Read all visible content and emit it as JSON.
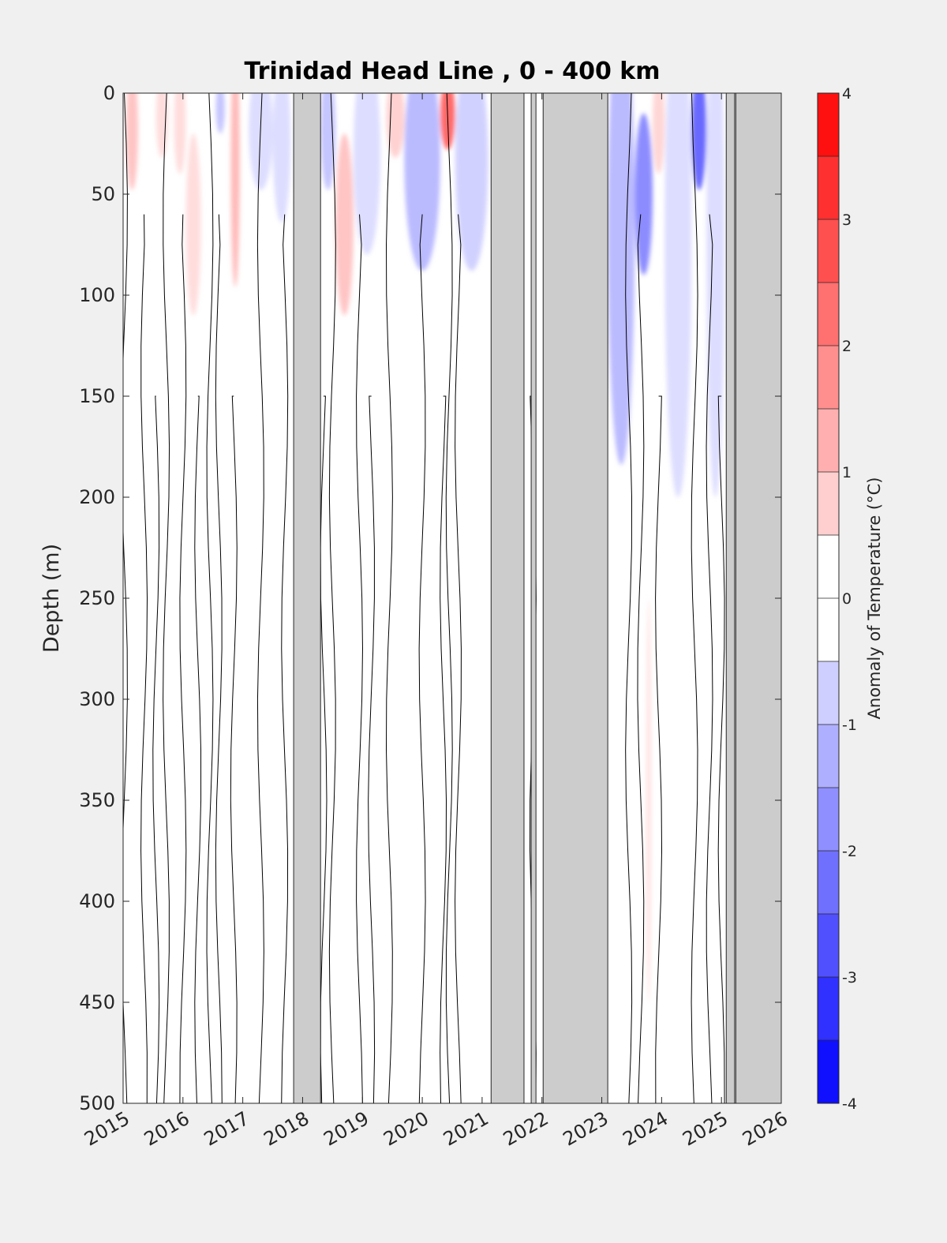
{
  "chart_data": {
    "type": "heatmap",
    "subtype": "filled-contour time-depth section",
    "title": "Trinidad Head Line , 0 - 400 km",
    "xlabel": "",
    "ylabel": "Depth (m)",
    "xlim": [
      2015,
      2026
    ],
    "ylim": [
      0,
      500
    ],
    "y_reversed": true,
    "xticks": [
      2015,
      2016,
      2017,
      2018,
      2019,
      2020,
      2021,
      2022,
      2023,
      2024,
      2025,
      2026
    ],
    "yticks": [
      0,
      50,
      100,
      150,
      200,
      250,
      300,
      350,
      400,
      450,
      500
    ],
    "colorbar": {
      "label": "Anomaly of Temperature (°C)",
      "limits": [
        -4,
        4
      ],
      "step": 0.5,
      "ticks": [
        -4,
        -3,
        -2,
        -1,
        0,
        1,
        2,
        3,
        4
      ],
      "negative_color": "#0000ff",
      "positive_color": "#ff0000",
      "zero_color": "#ffffff"
    },
    "no_data_color": "#cccccc",
    "no_data_periods": [
      [
        2017.85,
        2018.3
      ],
      [
        2021.15,
        2021.7
      ],
      [
        2021.82,
        2021.9
      ],
      [
        2022.02,
        2023.1
      ],
      [
        2025.08,
        2025.22
      ],
      [
        2025.24,
        2026.0
      ]
    ],
    "anomaly_features": [
      {
        "t": [
          2015.05,
          2015.25
        ],
        "depth": [
          0,
          60
        ],
        "value": 1.0
      },
      {
        "t": [
          2015.55,
          2015.75
        ],
        "depth": [
          0,
          40
        ],
        "value": 0.6
      },
      {
        "t": [
          2015.85,
          2016.05
        ],
        "depth": [
          0,
          50
        ],
        "value": 0.6
      },
      {
        "t": [
          2016.05,
          2016.3
        ],
        "depth": [
          20,
          110
        ],
        "value": 0.6
      },
      {
        "t": [
          2016.55,
          2016.7
        ],
        "depth": [
          0,
          25
        ],
        "value": -1.0
      },
      {
        "t": [
          2016.8,
          2016.95
        ],
        "depth": [
          0,
          120
        ],
        "value": 1.2
      },
      {
        "t": [
          2017.1,
          2017.5
        ],
        "depth": [
          0,
          60
        ],
        "value": -0.6
      },
      {
        "t": [
          2017.5,
          2017.8
        ],
        "depth": [
          0,
          80
        ],
        "value": -0.6
      },
      {
        "t": [
          2018.3,
          2018.55
        ],
        "depth": [
          0,
          60
        ],
        "value": -1.0
      },
      {
        "t": [
          2018.55,
          2018.85
        ],
        "depth": [
          20,
          110
        ],
        "value": 1.0
      },
      {
        "t": [
          2018.85,
          2019.3
        ],
        "depth": [
          0,
          100
        ],
        "value": -0.6
      },
      {
        "t": [
          2019.4,
          2019.7
        ],
        "depth": [
          0,
          40
        ],
        "value": 0.8
      },
      {
        "t": [
          2019.7,
          2020.3
        ],
        "depth": [
          0,
          110
        ],
        "value": -1.2
      },
      {
        "t": [
          2020.3,
          2020.55
        ],
        "depth": [
          0,
          35
        ],
        "value": 2.6
      },
      {
        "t": [
          2020.55,
          2021.1
        ],
        "depth": [
          0,
          110
        ],
        "value": -0.8
      },
      {
        "t": [
          2023.1,
          2023.55
        ],
        "depth": [
          0,
          230
        ],
        "value": -1.2
      },
      {
        "t": [
          2023.55,
          2023.85
        ],
        "depth": [
          10,
          90
        ],
        "value": -2.0
      },
      {
        "t": [
          2023.85,
          2024.05
        ],
        "depth": [
          0,
          50
        ],
        "value": 0.7
      },
      {
        "t": [
          2024.05,
          2024.5
        ],
        "depth": [
          0,
          250
        ],
        "value": -0.6
      },
      {
        "t": [
          2024.5,
          2024.75
        ],
        "depth": [
          0,
          60
        ],
        "value": -2.6
      },
      {
        "t": [
          2024.75,
          2025.05
        ],
        "depth": [
          0,
          250
        ],
        "value": -0.6
      },
      {
        "t": [
          2023.75,
          2023.82
        ],
        "depth": [
          250,
          450
        ],
        "value": 0.6
      }
    ]
  }
}
